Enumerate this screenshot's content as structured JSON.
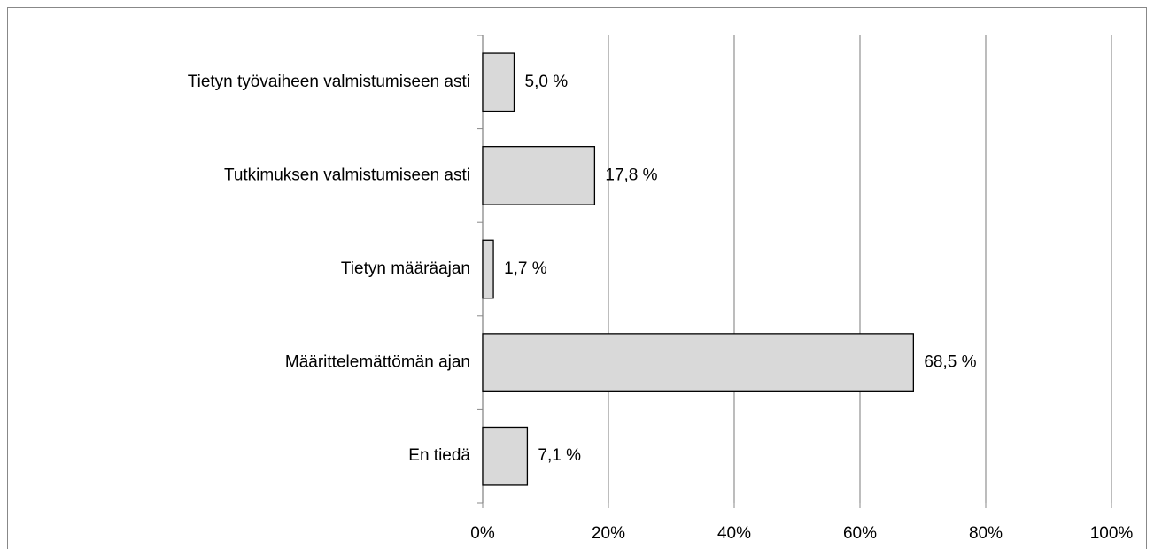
{
  "chart_data": {
    "type": "bar",
    "orientation": "horizontal",
    "categories": [
      "Tietyn työvaiheen valmistumiseen asti",
      "Tutkimuksen valmistumiseen asti",
      "Tietyn määräajan",
      "Määrittelemättömän ajan",
      "En tiedä"
    ],
    "values": [
      5.0,
      17.8,
      1.7,
      68.5,
      7.1
    ],
    "value_labels": [
      "5,0 %",
      "17,8 %",
      "1,7 %",
      "68,5 %",
      "7,1 %"
    ],
    "color": "#d9d9d9",
    "xlim": [
      0,
      100
    ],
    "xticks": [
      {
        "value": 0,
        "label": "0%"
      },
      {
        "value": 20,
        "label": "20%"
      },
      {
        "value": 40,
        "label": "40%"
      },
      {
        "value": 60,
        "label": "60%"
      },
      {
        "value": 80,
        "label": "80%"
      },
      {
        "value": 100,
        "label": "100%"
      }
    ],
    "grid": true
  }
}
